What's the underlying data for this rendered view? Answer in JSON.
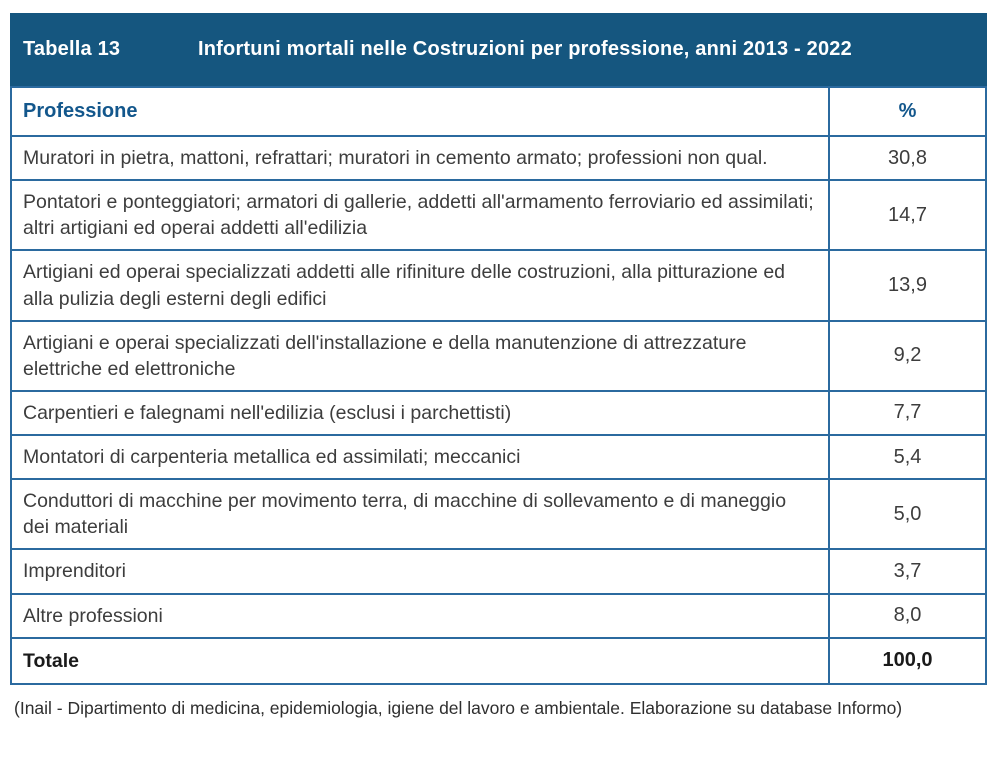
{
  "header": {
    "label": "Tabella 13",
    "title": "Infortuni mortali nelle Costruzioni per professione, anni 2013 - 2022"
  },
  "columns": {
    "profession": "Professione",
    "percent": "%"
  },
  "rows": [
    {
      "profession": "Muratori in pietra, mattoni, refrattari; muratori in cemento armato; professioni non qual.",
      "percent": "30,8"
    },
    {
      "profession": "Pontatori e ponteggiatori; armatori di gallerie, addetti all'armamento ferroviario ed assimilati; altri artigiani ed operai addetti all'edilizia",
      "percent": "14,7"
    },
    {
      "profession": "Artigiani ed operai specializzati addetti alle rifiniture delle costruzioni, alla pitturazione ed alla pulizia degli esterni degli edifici",
      "percent": "13,9"
    },
    {
      "profession": "Artigiani e operai specializzati dell'installazione e della manutenzione di attrezzature elettriche ed elettroniche",
      "percent": "9,2"
    },
    {
      "profession": "Carpentieri e falegnami nell'edilizia (esclusi i parchettisti)",
      "percent": "7,7"
    },
    {
      "profession": "Montatori di carpenteria metallica ed assimilati; meccanici",
      "percent": "5,4"
    },
    {
      "profession": "Conduttori di macchine per movimento terra, di macchine di sollevamento e di maneggio dei materiali",
      "percent": "5,0"
    },
    {
      "profession": "Imprenditori",
      "percent": "3,7"
    },
    {
      "profession": "Altre professioni",
      "percent": "8,0"
    }
  ],
  "total": {
    "label": "Totale",
    "percent": "100,0"
  },
  "footnote": "(Inail - Dipartimento di medicina, epidemiologia, igiene del lavoro e ambientale. Elaborazione su database Informo)",
  "colors": {
    "titlebar_bg": "#15567f",
    "titlebar_text": "#ffffff",
    "border_blue": "#2b6a9f",
    "column_header_text": "#13578c",
    "body_text": "#3d3d3d"
  }
}
